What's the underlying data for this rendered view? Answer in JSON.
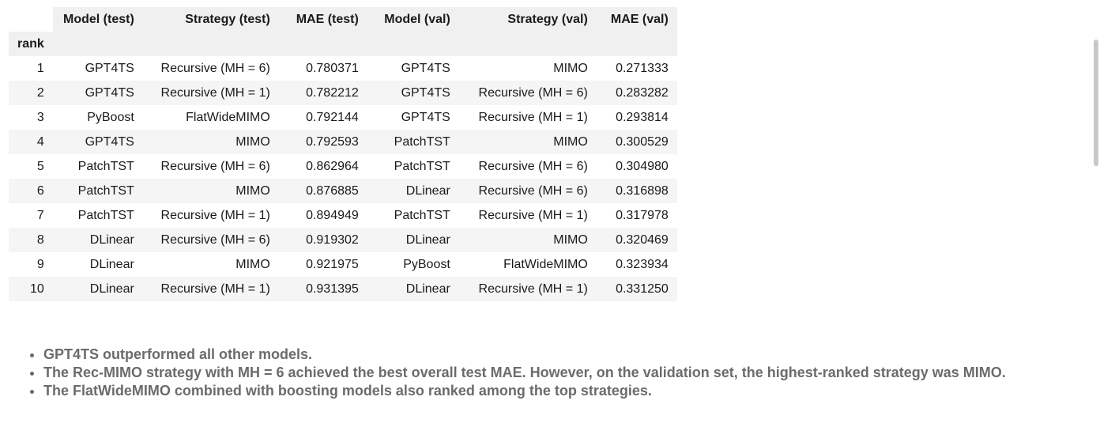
{
  "table": {
    "columns": [
      "Model (test)",
      "Strategy (test)",
      "MAE (test)",
      "Model (val)",
      "Strategy (val)",
      "MAE (val)"
    ],
    "index_name": "rank",
    "rows": [
      {
        "rank": "1",
        "model_test": "GPT4TS",
        "strategy_test": "Recursive (MH = 6)",
        "mae_test": "0.780371",
        "model_val": "GPT4TS",
        "strategy_val": "MIMO",
        "mae_val": "0.271333"
      },
      {
        "rank": "2",
        "model_test": "GPT4TS",
        "strategy_test": "Recursive (MH = 1)",
        "mae_test": "0.782212",
        "model_val": "GPT4TS",
        "strategy_val": "Recursive (MH = 6)",
        "mae_val": "0.283282"
      },
      {
        "rank": "3",
        "model_test": "PyBoost",
        "strategy_test": "FlatWideMIMO",
        "mae_test": "0.792144",
        "model_val": "GPT4TS",
        "strategy_val": "Recursive (MH = 1)",
        "mae_val": "0.293814"
      },
      {
        "rank": "4",
        "model_test": "GPT4TS",
        "strategy_test": "MIMO",
        "mae_test": "0.792593",
        "model_val": "PatchTST",
        "strategy_val": "MIMO",
        "mae_val": "0.300529"
      },
      {
        "rank": "5",
        "model_test": "PatchTST",
        "strategy_test": "Recursive (MH = 6)",
        "mae_test": "0.862964",
        "model_val": "PatchTST",
        "strategy_val": "Recursive (MH = 6)",
        "mae_val": "0.304980"
      },
      {
        "rank": "6",
        "model_test": "PatchTST",
        "strategy_test": "MIMO",
        "mae_test": "0.876885",
        "model_val": "DLinear",
        "strategy_val": "Recursive (MH = 6)",
        "mae_val": "0.316898"
      },
      {
        "rank": "7",
        "model_test": "PatchTST",
        "strategy_test": "Recursive (MH = 1)",
        "mae_test": "0.894949",
        "model_val": "PatchTST",
        "strategy_val": "Recursive (MH = 1)",
        "mae_val": "0.317978"
      },
      {
        "rank": "8",
        "model_test": "DLinear",
        "strategy_test": "Recursive (MH = 6)",
        "mae_test": "0.919302",
        "model_val": "DLinear",
        "strategy_val": "MIMO",
        "mae_val": "0.320469"
      },
      {
        "rank": "9",
        "model_test": "DLinear",
        "strategy_test": "MIMO",
        "mae_test": "0.921975",
        "model_val": "PyBoost",
        "strategy_val": "FlatWideMIMO",
        "mae_val": "0.323934"
      },
      {
        "rank": "10",
        "model_test": "DLinear",
        "strategy_test": "Recursive (MH = 1)",
        "mae_test": "0.931395",
        "model_val": "DLinear",
        "strategy_val": "Recursive (MH = 1)",
        "mae_val": "0.331250"
      }
    ]
  },
  "notes": [
    "GPT4TS outperformed all other models.",
    "The Rec-MIMO strategy with MH = 6 achieved the best overall test MAE. However, on the validation set, the highest-ranked strategy was MIMO.",
    "The FlatWideMIMO combined with boosting models also ranked among the top strategies."
  ]
}
